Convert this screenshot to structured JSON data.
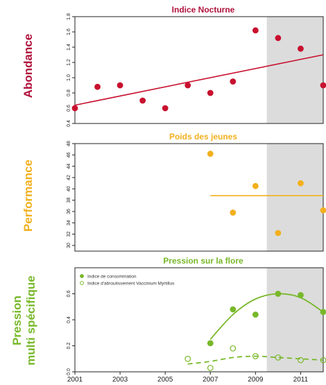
{
  "side_labels": {
    "abondance": "Abondance",
    "performance": "Performance",
    "pression_line1": "Pression",
    "pression_line2": "multi spécifique"
  },
  "colors": {
    "abondance": "#b0123c",
    "abondance_points": "#c8102e",
    "performance": "#f2b01e",
    "pression": "#78b82a",
    "shade": "#dcdcdc",
    "axis": "#222222"
  },
  "chart_data": [
    {
      "type": "scatter",
      "title": "Indice Nocturne",
      "xlim": [
        2001,
        2012
      ],
      "ylim": [
        0.4,
        1.8
      ],
      "yticks": [
        0.4,
        0.6,
        0.8,
        1.0,
        1.2,
        1.4,
        1.6,
        1.8
      ],
      "ytick_labels": [
        "0.4",
        "0.6",
        "0.8",
        "1.0",
        "1.2",
        "1.4",
        "1.6",
        "1.8"
      ],
      "shaded_from": 2009.5,
      "series": [
        {
          "x": [
            2001,
            2002,
            2003,
            2004,
            2005,
            2006,
            2007,
            2008,
            2009,
            2010,
            2011,
            2012
          ],
          "y": [
            0.6,
            0.88,
            0.9,
            0.7,
            0.6,
            0.9,
            0.8,
            0.95,
            1.62,
            1.52,
            1.38,
            0.9
          ]
        }
      ],
      "trend": {
        "x": [
          2001,
          2012
        ],
        "y": [
          0.64,
          1.3
        ]
      }
    },
    {
      "type": "scatter",
      "title": "Poids des jeunes",
      "xlim": [
        2001,
        2012
      ],
      "ylim": [
        29,
        48
      ],
      "yticks": [
        30,
        32,
        34,
        36,
        38,
        40,
        42,
        44,
        46,
        48
      ],
      "ytick_labels": [
        "30",
        "32",
        "34",
        "36",
        "38",
        "40",
        "42",
        "44",
        "46",
        "48"
      ],
      "shaded_from": 2009.5,
      "series": [
        {
          "x": [
            2007,
            2008,
            2009,
            2010,
            2011,
            2012
          ],
          "y": [
            46.2,
            35.8,
            40.5,
            32.2,
            41.0,
            36.2
          ]
        }
      ],
      "mean_line": {
        "x": [
          2007,
          2012
        ],
        "y": [
          38.8,
          38.8
        ]
      }
    },
    {
      "type": "line",
      "title": "Pression sur la flore",
      "xlim": [
        2001,
        2012
      ],
      "ylim": [
        0,
        0.8
      ],
      "yticks": [
        0.0,
        0.2,
        0.4,
        0.6
      ],
      "ytick_labels": [
        "0.0",
        "0.2",
        "0.4",
        "0.6"
      ],
      "xticks": [
        2001,
        2003,
        2005,
        2007,
        2009,
        2011
      ],
      "xtick_labels": [
        "2001",
        "2003",
        "2005",
        "2007",
        "2009",
        "2011"
      ],
      "shaded_from": 2009.5,
      "legend_position": "top-left",
      "series": [
        {
          "name": "Indice de consommation",
          "style": "filled-circle-solid",
          "x": [
            2007,
            2008,
            2009,
            2010,
            2011,
            2012
          ],
          "y": [
            0.22,
            0.48,
            0.44,
            0.6,
            0.59,
            0.46
          ],
          "fit": {
            "x": [
              2007,
              2008,
              2009,
              2010,
              2011,
              2012
            ],
            "y": [
              0.25,
              0.44,
              0.56,
              0.6,
              0.57,
              0.46
            ]
          }
        },
        {
          "name": "Indice d'abroutissement Vaccinium Myrtillus",
          "style": "open-circle-dashed",
          "x": [
            2006,
            2007,
            2008,
            2009,
            2010,
            2011,
            2012
          ],
          "y": [
            0.1,
            0.03,
            0.18,
            0.12,
            0.11,
            0.09,
            0.09
          ],
          "fit": {
            "x": [
              2006,
              2007,
              2008,
              2009,
              2010,
              2011,
              2012
            ],
            "y": [
              0.06,
              0.08,
              0.11,
              0.12,
              0.11,
              0.1,
              0.09
            ]
          }
        }
      ]
    }
  ]
}
